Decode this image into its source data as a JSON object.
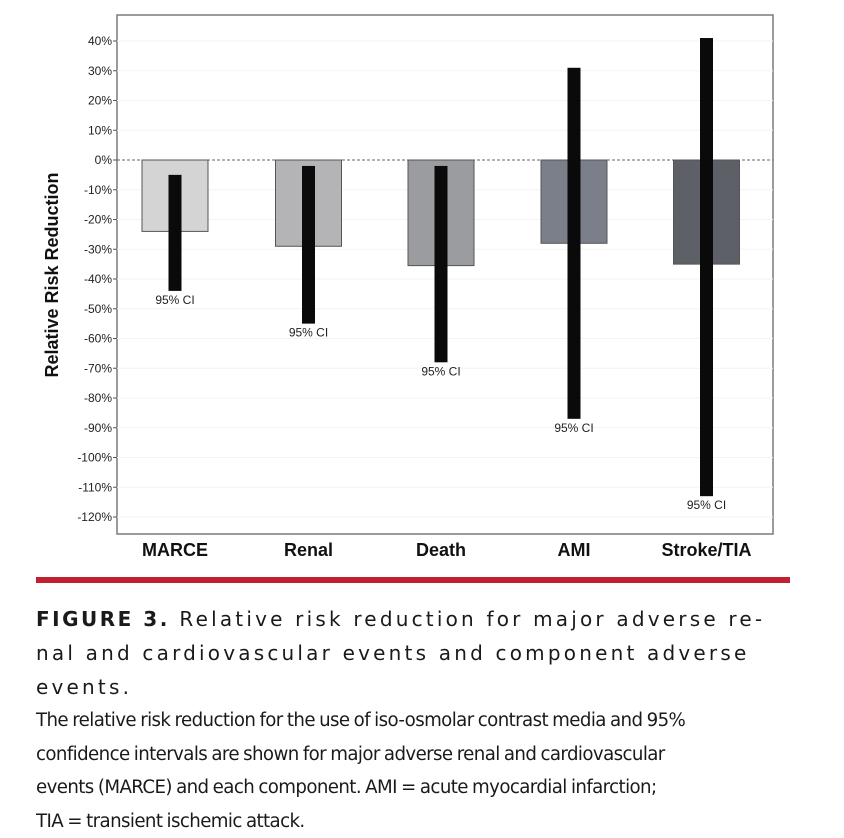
{
  "chart_data": {
    "type": "bar",
    "title": "",
    "xlabel": "",
    "ylabel": "Relative Risk Reduction",
    "ylim": [
      -125,
      48
    ],
    "yticks": [
      40,
      30,
      20,
      10,
      0,
      -10,
      -20,
      -30,
      -40,
      -50,
      -60,
      -70,
      -80,
      -90,
      -100,
      -110,
      -120
    ],
    "ytick_labels": [
      "40%",
      "30%",
      "20%",
      "10%",
      "0%",
      "-10%",
      "-20%",
      "-30%",
      "-40%",
      "-50%",
      "-60%",
      "-70%",
      "-80%",
      "-90%",
      "-100%",
      "-110%",
      "-120%"
    ],
    "reference_line": {
      "value": 0,
      "style": "dashed"
    },
    "categories": [
      "MARCE",
      "Renal",
      "Death",
      "AMI",
      "Stroke/TIA"
    ],
    "series": [
      {
        "name": "Relative risk reduction (%)",
        "values": [
          -24,
          -29,
          -35.5,
          -28,
          -35
        ]
      }
    ],
    "ci_lower": [
      -44,
      -55,
      -68,
      -87,
      -113
    ],
    "ci_upper": [
      -5,
      -2,
      -2,
      31,
      41
    ],
    "ci_label": "95% CI",
    "bar_colors": [
      "#d4d4d4",
      "#b4b4b6",
      "#9b9ca0",
      "#7a7f8a",
      "#5e6068"
    ],
    "ci_color": "#0a0a0a",
    "grid": false
  },
  "caption": {
    "figure_label": "FIGURE 3.",
    "title": "Relative risk reduction for major adverse re-nal and cardiovascular events and component adverse events.",
    "title_line1": "Relative risk reduction for major adverse re-",
    "title_line2": "nal and cardiovascular events and component adverse events.",
    "body_lines": [
      "The relative risk reduction for the use of iso-osmolar contrast media and 95%",
      "confidence intervals are shown for major adverse renal and cardiovascular",
      "events (MARCE) and each component. AMI = acute myocardial infarction;",
      "TIA = transient ischemic attack."
    ]
  },
  "colors": {
    "rule": "#c0202f"
  }
}
